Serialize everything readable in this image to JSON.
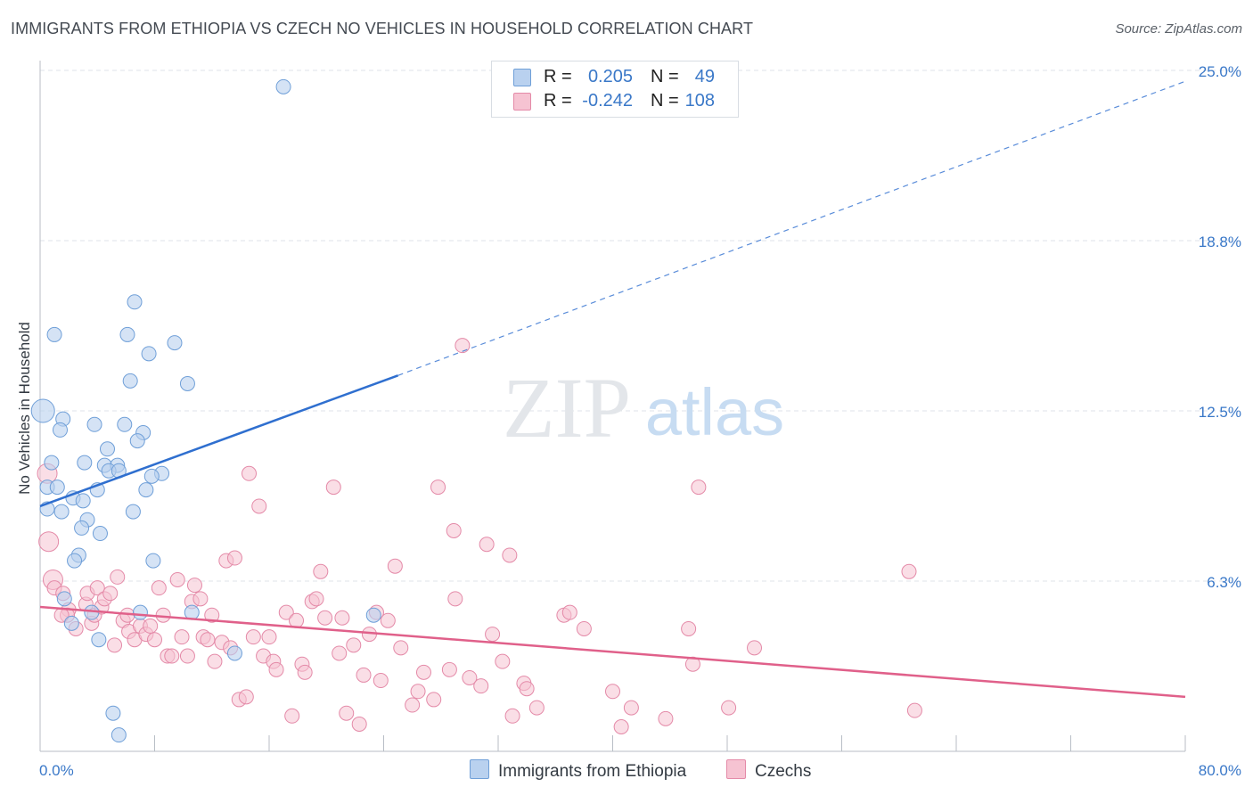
{
  "title": "IMMIGRANTS FROM ETHIOPIA VS CZECH NO VEHICLES IN HOUSEHOLD CORRELATION CHART",
  "source": "Source: ZipAtlas.com",
  "watermark": {
    "zip": "ZIP",
    "atlas": "atlas"
  },
  "stats": {
    "ethiopia": {
      "r_label": "R =",
      "r_value": "0.205",
      "n_label": "N =",
      "n_value": "49"
    },
    "czechs": {
      "r_label": "R =",
      "r_value": "-0.242",
      "n_label": "N =",
      "n_value": "108"
    }
  },
  "legend": {
    "ethiopia": "Immigrants from Ethiopia",
    "czechs": "Czechs"
  },
  "colors": {
    "ethiopia_fill": "#b9d1ef",
    "ethiopia_stroke": "#6f9fd8",
    "ethiopia_line": "#2f6fcf",
    "czechs_fill": "#f6c3d2",
    "czechs_stroke": "#e48aa8",
    "czechs_line": "#e0608a",
    "axis_text": "#3a78c8",
    "grid": "#dfe3e8"
  },
  "chart_data": {
    "type": "scatter",
    "title": "IMMIGRANTS FROM ETHIOPIA VS CZECH NO VEHICLES IN HOUSEHOLD CORRELATION CHART",
    "xlabel": "",
    "ylabel": "No Vehicles in Household",
    "xlim": [
      0,
      80
    ],
    "ylim": [
      0,
      25
    ],
    "x_tick_labels": [
      "0.0%",
      "80.0%"
    ],
    "y_ticks": [
      6.25,
      12.5,
      18.75,
      25
    ],
    "y_tick_labels": [
      "6.3%",
      "12.5%",
      "18.8%",
      "25.0%"
    ],
    "grid": true,
    "legend_position": "bottom-center",
    "series": [
      {
        "name": "Immigrants from Ethiopia",
        "trend": {
          "x_start": 0,
          "y_start": 9.0,
          "x_solid_end": 25,
          "y_solid_end": 13.8,
          "x_dash_end": 80,
          "y_dash_end": 24.6
        },
        "points": [
          [
            17,
            24.4
          ],
          [
            0.2,
            12.5
          ],
          [
            6.6,
            16.5
          ],
          [
            1.0,
            15.3
          ],
          [
            6.1,
            15.3
          ],
          [
            9.4,
            15.0
          ],
          [
            7.6,
            14.6
          ],
          [
            6.3,
            13.6
          ],
          [
            10.3,
            13.5
          ],
          [
            1.6,
            12.2
          ],
          [
            3.8,
            12.0
          ],
          [
            5.9,
            12.0
          ],
          [
            1.4,
            11.8
          ],
          [
            7.2,
            11.7
          ],
          [
            6.8,
            11.4
          ],
          [
            4.7,
            11.1
          ],
          [
            0.8,
            10.6
          ],
          [
            3.1,
            10.6
          ],
          [
            4.5,
            10.5
          ],
          [
            5.4,
            10.5
          ],
          [
            4.8,
            10.3
          ],
          [
            5.5,
            10.3
          ],
          [
            8.5,
            10.2
          ],
          [
            7.8,
            10.1
          ],
          [
            0.5,
            9.7
          ],
          [
            1.2,
            9.7
          ],
          [
            7.4,
            9.6
          ],
          [
            4.0,
            9.6
          ],
          [
            2.3,
            9.3
          ],
          [
            3.0,
            9.2
          ],
          [
            0.5,
            8.9
          ],
          [
            1.5,
            8.8
          ],
          [
            6.5,
            8.8
          ],
          [
            3.3,
            8.5
          ],
          [
            2.9,
            8.2
          ],
          [
            4.2,
            8.0
          ],
          [
            2.7,
            7.2
          ],
          [
            2.4,
            7.0
          ],
          [
            7.9,
            7.0
          ],
          [
            1.7,
            5.6
          ],
          [
            3.6,
            5.1
          ],
          [
            7.0,
            5.1
          ],
          [
            23.3,
            5.0
          ],
          [
            4.1,
            4.1
          ],
          [
            5.1,
            1.4
          ],
          [
            5.5,
            0.6
          ],
          [
            10.6,
            5.1
          ],
          [
            13.6,
            3.6
          ],
          [
            2.2,
            4.7
          ]
        ]
      },
      {
        "name": "Czechs",
        "trend": {
          "x_start": 0,
          "y_start": 5.3,
          "x_end": 80,
          "y_end": 2.0
        },
        "points": [
          [
            0.5,
            10.2
          ],
          [
            0.6,
            7.7
          ],
          [
            0.9,
            6.3
          ],
          [
            1.0,
            6.0
          ],
          [
            1.6,
            5.8
          ],
          [
            2.0,
            5.2
          ],
          [
            1.9,
            5.0
          ],
          [
            1.5,
            5.0
          ],
          [
            2.5,
            4.5
          ],
          [
            3.2,
            5.4
          ],
          [
            3.3,
            5.8
          ],
          [
            3.6,
            4.7
          ],
          [
            3.8,
            5.0
          ],
          [
            4.0,
            6.0
          ],
          [
            4.3,
            5.3
          ],
          [
            4.5,
            5.6
          ],
          [
            4.9,
            5.8
          ],
          [
            5.2,
            3.9
          ],
          [
            5.4,
            6.4
          ],
          [
            5.8,
            4.8
          ],
          [
            6.1,
            5.0
          ],
          [
            6.2,
            4.4
          ],
          [
            6.6,
            4.1
          ],
          [
            7.0,
            4.6
          ],
          [
            7.4,
            4.3
          ],
          [
            7.7,
            4.6
          ],
          [
            8.0,
            4.1
          ],
          [
            8.3,
            6.0
          ],
          [
            8.6,
            5.0
          ],
          [
            8.9,
            3.5
          ],
          [
            9.2,
            3.5
          ],
          [
            9.6,
            6.3
          ],
          [
            9.9,
            4.2
          ],
          [
            10.3,
            3.5
          ],
          [
            10.6,
            5.5
          ],
          [
            10.8,
            6.1
          ],
          [
            11.2,
            5.6
          ],
          [
            11.4,
            4.2
          ],
          [
            11.7,
            4.1
          ],
          [
            12.0,
            5.0
          ],
          [
            12.2,
            3.3
          ],
          [
            12.7,
            4.0
          ],
          [
            13.0,
            7.0
          ],
          [
            13.3,
            3.8
          ],
          [
            13.6,
            7.1
          ],
          [
            13.9,
            1.9
          ],
          [
            14.4,
            2.0
          ],
          [
            14.6,
            10.2
          ],
          [
            14.9,
            4.2
          ],
          [
            15.3,
            9.0
          ],
          [
            15.6,
            3.5
          ],
          [
            16.0,
            4.2
          ],
          [
            16.3,
            3.3
          ],
          [
            16.5,
            3.0
          ],
          [
            17.2,
            5.1
          ],
          [
            17.6,
            1.3
          ],
          [
            17.9,
            4.8
          ],
          [
            18.3,
            3.2
          ],
          [
            18.5,
            2.9
          ],
          [
            19.0,
            5.5
          ],
          [
            19.3,
            5.6
          ],
          [
            19.6,
            6.6
          ],
          [
            19.9,
            4.9
          ],
          [
            20.5,
            9.7
          ],
          [
            20.9,
            3.6
          ],
          [
            21.1,
            4.9
          ],
          [
            21.4,
            1.4
          ],
          [
            21.9,
            3.9
          ],
          [
            22.3,
            1.0
          ],
          [
            22.6,
            2.8
          ],
          [
            23.0,
            4.3
          ],
          [
            23.5,
            5.1
          ],
          [
            23.8,
            2.6
          ],
          [
            24.3,
            4.8
          ],
          [
            24.8,
            6.8
          ],
          [
            25.2,
            3.8
          ],
          [
            26.0,
            1.7
          ],
          [
            26.4,
            2.2
          ],
          [
            26.8,
            2.9
          ],
          [
            27.5,
            1.9
          ],
          [
            27.8,
            9.7
          ],
          [
            28.6,
            3.0
          ],
          [
            28.9,
            8.1
          ],
          [
            29.0,
            5.6
          ],
          [
            29.5,
            14.9
          ],
          [
            30.0,
            2.7
          ],
          [
            30.8,
            2.4
          ],
          [
            31.2,
            7.6
          ],
          [
            31.6,
            4.3
          ],
          [
            32.3,
            3.3
          ],
          [
            32.8,
            7.2
          ],
          [
            33.0,
            1.3
          ],
          [
            33.8,
            2.5
          ],
          [
            34.0,
            2.3
          ],
          [
            34.7,
            1.6
          ],
          [
            36.6,
            5.0
          ],
          [
            37.0,
            5.1
          ],
          [
            38.0,
            4.5
          ],
          [
            40.0,
            2.2
          ],
          [
            40.6,
            0.9
          ],
          [
            41.3,
            1.6
          ],
          [
            43.7,
            1.2
          ],
          [
            45.3,
            4.5
          ],
          [
            45.6,
            3.2
          ],
          [
            46.0,
            9.7
          ],
          [
            48.1,
            1.6
          ],
          [
            49.9,
            3.8
          ],
          [
            60.7,
            6.6
          ],
          [
            61.1,
            1.5
          ]
        ]
      }
    ]
  }
}
